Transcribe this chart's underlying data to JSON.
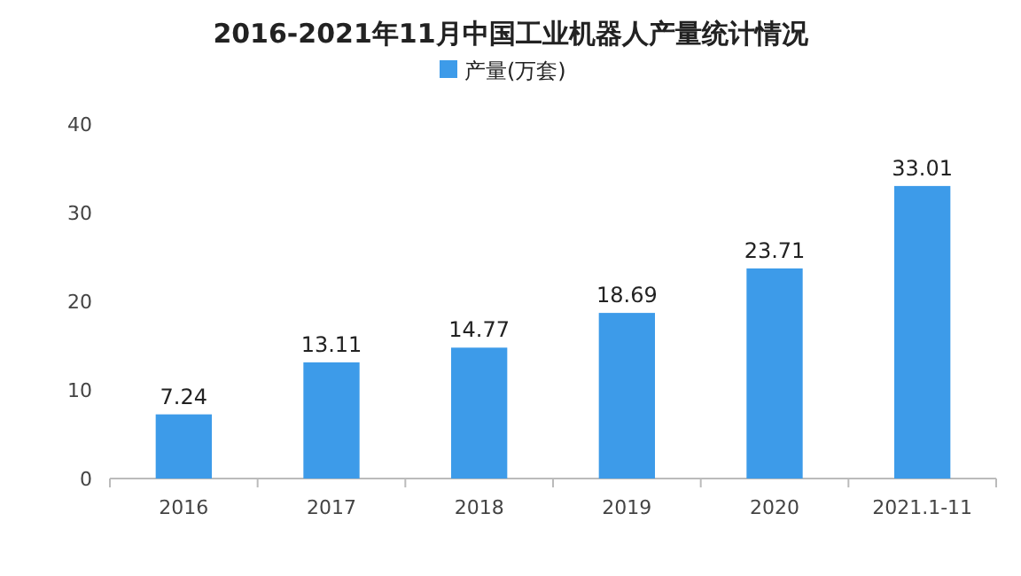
{
  "chart_data": {
    "type": "bar",
    "title": "2016-2021年11月中国工业机器人产量统计情况",
    "categories": [
      "2016",
      "2017",
      "2018",
      "2019",
      "2020",
      "2021.1-11"
    ],
    "series": [
      {
        "name": "产量(万套)",
        "color": "#3d9be9",
        "values": [
          7.24,
          13.11,
          14.77,
          18.69,
          23.71,
          33.01
        ]
      }
    ],
    "ylim": [
      0,
      40
    ],
    "yticks": [
      0,
      10,
      20,
      30,
      40
    ],
    "grid": false,
    "legend": "top",
    "data_labels": true
  }
}
